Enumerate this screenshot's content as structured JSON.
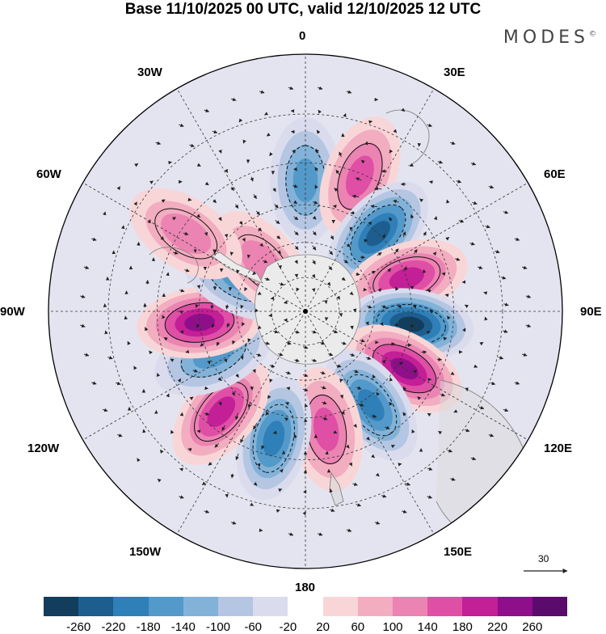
{
  "title": "Base 11/10/2025 00 UTC, valid 12/10/2025 12 UTC",
  "brand": "MODES",
  "brand_mark": "©",
  "longitude_labels": {
    "n": "0",
    "nne": "30E",
    "ene": "60E",
    "e": "90E",
    "ese": "120E",
    "sse": "150E",
    "s": "180",
    "ssw": "150W",
    "wsw": "120W",
    "w": "90W",
    "wnw": "60W",
    "nnw": "30W"
  },
  "reference_vector": {
    "label": "30"
  },
  "colorbar": {
    "colors": [
      "#123d5c",
      "#1d5e8e",
      "#2f7fb8",
      "#5399c9",
      "#83b2d8",
      "#b4c6e2",
      "#dadcee",
      "#ffffff",
      "#f8d6d8",
      "#f2adc0",
      "#eb84b2",
      "#df4fa5",
      "#c31f96",
      "#8f0f8a",
      "#5a0b6c"
    ],
    "ticks": [
      "-260",
      "-220",
      "-180",
      "-140",
      "-100",
      "-60",
      "-20",
      "20",
      "60",
      "100",
      "140",
      "180",
      "220",
      "260"
    ]
  },
  "anomaly_centers": [
    {
      "name": "anomaly-neg-0E",
      "sign": "negative",
      "value": -150,
      "lon": 0,
      "lat": -36
    },
    {
      "name": "anomaly-pos-20E",
      "sign": "positive",
      "value": 140,
      "lon": 22,
      "lat": -31
    },
    {
      "name": "anomaly-neg-45E",
      "sign": "negative",
      "value": -240,
      "lon": 43,
      "lat": -45
    },
    {
      "name": "anomaly-pos-70E",
      "sign": "positive",
      "value": 200,
      "lon": 72,
      "lat": -45
    },
    {
      "name": "anomaly-neg-90E",
      "sign": "negative",
      "value": -260,
      "lon": 97,
      "lat": -45
    },
    {
      "name": "anomaly-pos-120E",
      "sign": "positive",
      "value": 230,
      "lon": 120,
      "lat": -42
    },
    {
      "name": "anomaly-neg-145E",
      "sign": "negative",
      "value": -200,
      "lon": 145,
      "lat": -42
    },
    {
      "name": "anomaly-pos-170E",
      "sign": "positive",
      "value": 160,
      "lon": 170,
      "lat": -40
    },
    {
      "name": "anomaly-neg-165W",
      "sign": "negative",
      "value": -210,
      "lon": -166,
      "lat": -36
    },
    {
      "name": "anomaly-pos-140W",
      "sign": "positive",
      "value": 200,
      "lon": -140,
      "lat": -36
    },
    {
      "name": "anomaly-neg-115W",
      "sign": "negative",
      "value": -170,
      "lon": -115,
      "lat": -47
    },
    {
      "name": "anomaly-pos-95W",
      "sign": "positive",
      "value": 230,
      "lon": -96,
      "lat": -45
    },
    {
      "name": "anomaly-neg-65W",
      "sign": "negative",
      "value": -140,
      "lon": -63,
      "lat": -58
    },
    {
      "name": "anomaly-pos-45W",
      "sign": "positive",
      "value": 130,
      "lon": -42,
      "lat": -62
    },
    {
      "name": "anomaly-pos-60W",
      "sign": "positive",
      "value": 110,
      "lon": -57,
      "lat": -32
    }
  ]
}
